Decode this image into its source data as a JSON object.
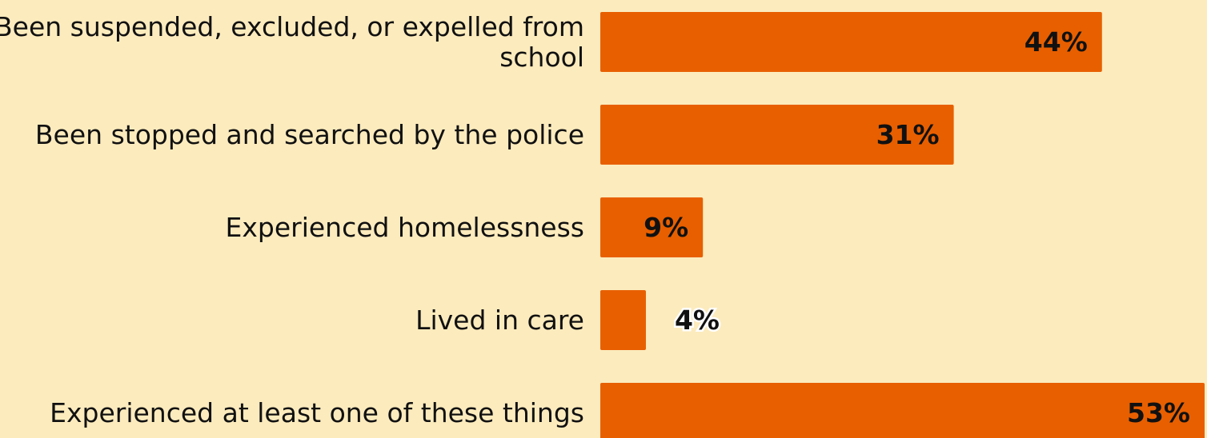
{
  "chart_data": {
    "type": "bar",
    "orientation": "horizontal",
    "categories": [
      "Been suspended, excluded, or expelled from school",
      "Been stopped and searched by the police",
      "Experienced homelessness",
      "Lived in care",
      "Experienced at least one of these things"
    ],
    "category_lines": [
      [
        "Been suspended, excluded, or expelled from",
        "school"
      ],
      [
        "Been stopped and searched by the police"
      ],
      [
        "Experienced homelessness"
      ],
      [
        "Lived in care"
      ],
      [
        "Experienced at least one of these things"
      ]
    ],
    "values": [
      44,
      31,
      9,
      4,
      53
    ],
    "value_labels": [
      "44%",
      "31%",
      "9%",
      "4%",
      "53%"
    ],
    "xlim": [
      0,
      53
    ],
    "grid": false,
    "legend": "none",
    "colors": {
      "background": "#fcebbd",
      "bar": "#e85f00",
      "value_label": "#111111",
      "value_label_outline": "#ffffff"
    }
  }
}
